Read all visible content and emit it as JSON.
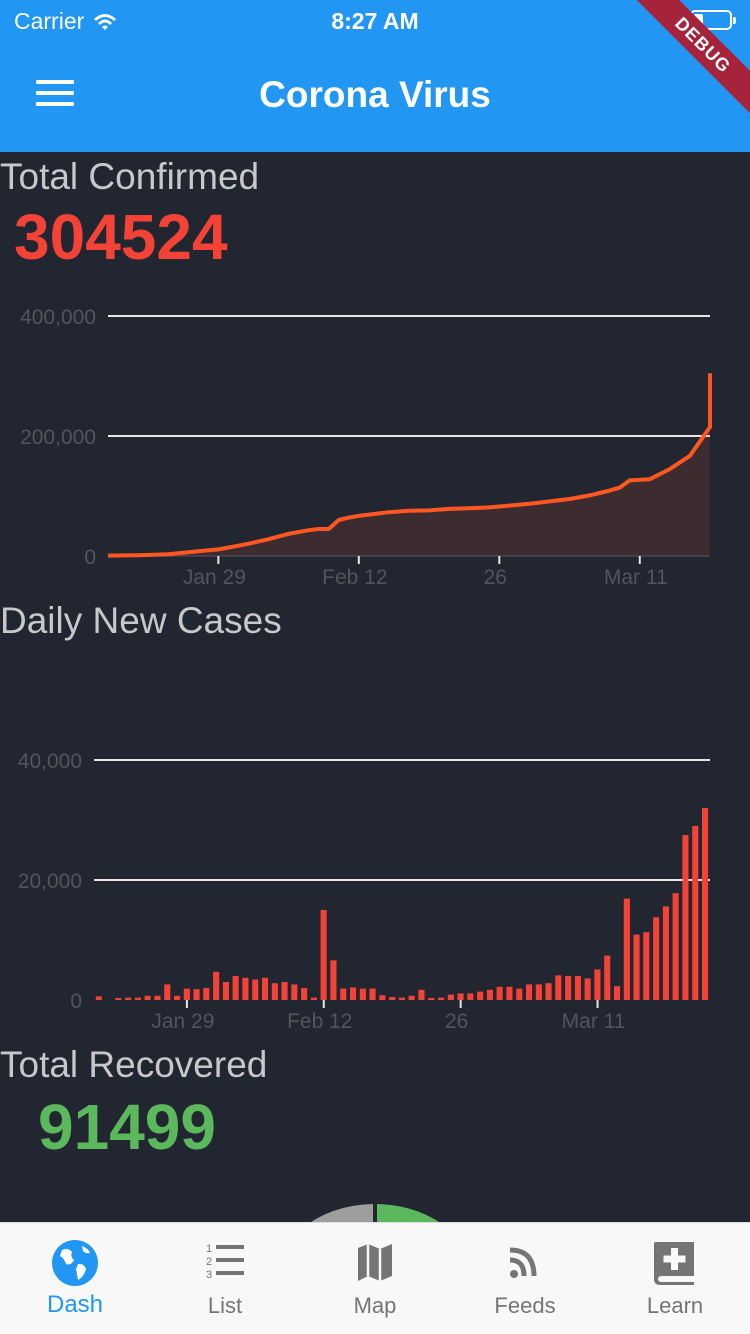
{
  "status_bar": {
    "carrier": "Carrier",
    "time": "8:27 AM"
  },
  "app_bar": {
    "title": "Corona Virus",
    "debug_banner": "DEBUG"
  },
  "confirmed": {
    "title": "Total Confirmed",
    "value": "304524",
    "color": "#f44336"
  },
  "daily": {
    "title": "Daily New Cases",
    "bar_color": "#f44336"
  },
  "recovered": {
    "title": "Total Recovered",
    "value": "91499",
    "color": "#5cb85c"
  },
  "tabs": [
    {
      "label": "Dash",
      "icon": "globe-icon",
      "active": true
    },
    {
      "label": "List",
      "icon": "numbered-list-icon",
      "active": false
    },
    {
      "label": "Map",
      "icon": "map-icon",
      "active": false
    },
    {
      "label": "Feeds",
      "icon": "rss-icon",
      "active": false
    },
    {
      "label": "Learn",
      "icon": "medical-book-icon",
      "active": false
    }
  ],
  "colors": {
    "accent": "#2196f3",
    "background": "#222631",
    "line": "#ff5722"
  },
  "chart_data": [
    {
      "type": "area",
      "series_label": "Total Confirmed",
      "x_ticks": [
        "Jan 29",
        "Feb 12",
        "26",
        "Mar 11"
      ],
      "y_ticks": [
        "0",
        "200,000",
        "400,000"
      ],
      "ylim": [
        0,
        400000
      ],
      "x_range_days": [
        0,
        60
      ],
      "x": [
        0,
        3,
        6,
        7,
        9,
        11,
        13,
        14,
        16,
        18,
        20,
        21,
        22,
        23,
        24,
        25,
        26,
        28,
        30,
        32,
        34,
        36,
        38,
        40,
        42,
        44,
        46,
        48,
        49,
        50,
        51,
        52,
        54,
        56,
        58,
        60
      ],
      "y": [
        600,
        1300,
        2900,
        4600,
        7800,
        11000,
        17200,
        20500,
        28000,
        37000,
        43000,
        45000,
        45000,
        60000,
        64000,
        67000,
        69000,
        73000,
        75500,
        76000,
        78500,
        79500,
        81000,
        84000,
        87000,
        91000,
        95000,
        101000,
        105000,
        109000,
        114000,
        126000,
        128000,
        145000,
        167000,
        215000
      ],
      "y_end": 304524,
      "grid": true
    },
    {
      "type": "bar",
      "series_label": "Daily New Cases",
      "x_ticks": [
        "Jan 29",
        "Feb 12",
        "26",
        "Mar 11"
      ],
      "y_ticks": [
        "0",
        "20,000",
        "40,000"
      ],
      "ylim": [
        0,
        40000
      ],
      "values": [
        600,
        0,
        200,
        400,
        400,
        700,
        700,
        2600,
        700,
        1900,
        1800,
        2000,
        4700,
        3000,
        4000,
        3700,
        3400,
        3700,
        2800,
        3000,
        2600,
        2000,
        400,
        15000,
        6600,
        1900,
        2100,
        1900,
        1900,
        800,
        500,
        400,
        700,
        1700,
        300,
        400,
        900,
        1100,
        1100,
        1400,
        1700,
        2200,
        2200,
        1900,
        2600,
        2600,
        2800,
        4100,
        4000,
        4000,
        3600,
        5100,
        7400,
        2300,
        16900,
        10900,
        11300,
        13800,
        15600,
        17800,
        27500,
        29000,
        32000
      ],
      "grid": true
    }
  ]
}
